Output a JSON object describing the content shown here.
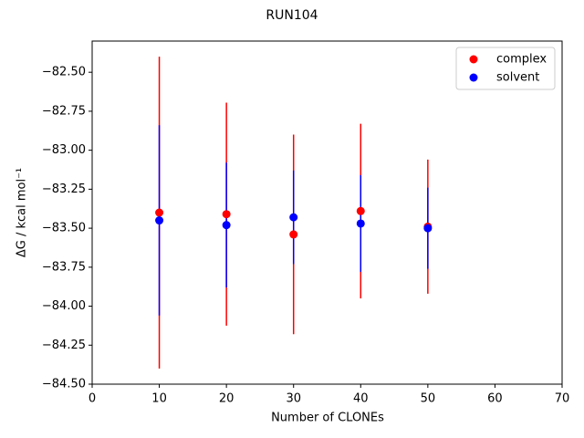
{
  "chart_data": {
    "type": "errorbar-scatter",
    "title": "RUN104",
    "xlabel": "Number of CLONEs",
    "ylabel": "ΔG / kcal mol⁻¹",
    "xlim": [
      0,
      70
    ],
    "xticks": [
      0,
      10,
      20,
      30,
      40,
      50,
      60,
      70
    ],
    "ylim": [
      -84.5,
      -82.3
    ],
    "yticks": [
      {
        "value": -84.5,
        "label": "−84.50"
      },
      {
        "value": -84.25,
        "label": "−84.25"
      },
      {
        "value": -84.0,
        "label": "−84.00"
      },
      {
        "value": -83.75,
        "label": "−83.75"
      },
      {
        "value": -83.5,
        "label": "−83.50"
      },
      {
        "value": -83.25,
        "label": "−83.25"
      },
      {
        "value": -83.0,
        "label": "−83.00"
      },
      {
        "value": -82.75,
        "label": "−82.75"
      },
      {
        "value": -82.5,
        "label": "−82.50"
      }
    ],
    "legend": "upper right",
    "x": [
      10,
      20,
      30,
      40,
      50
    ],
    "series": [
      {
        "name": "complex",
        "color": "#ff0000",
        "values": [
          -83.4,
          -83.41,
          -83.54,
          -83.39,
          -83.49
        ],
        "errors": [
          1.0,
          0.715,
          0.64,
          0.56,
          0.43
        ]
      },
      {
        "name": "solvent",
        "color": "#0000ff",
        "values": [
          -83.45,
          -83.48,
          -83.43,
          -83.47,
          -83.5
        ],
        "errors": [
          0.61,
          0.4,
          0.3,
          0.31,
          0.26
        ]
      }
    ]
  }
}
